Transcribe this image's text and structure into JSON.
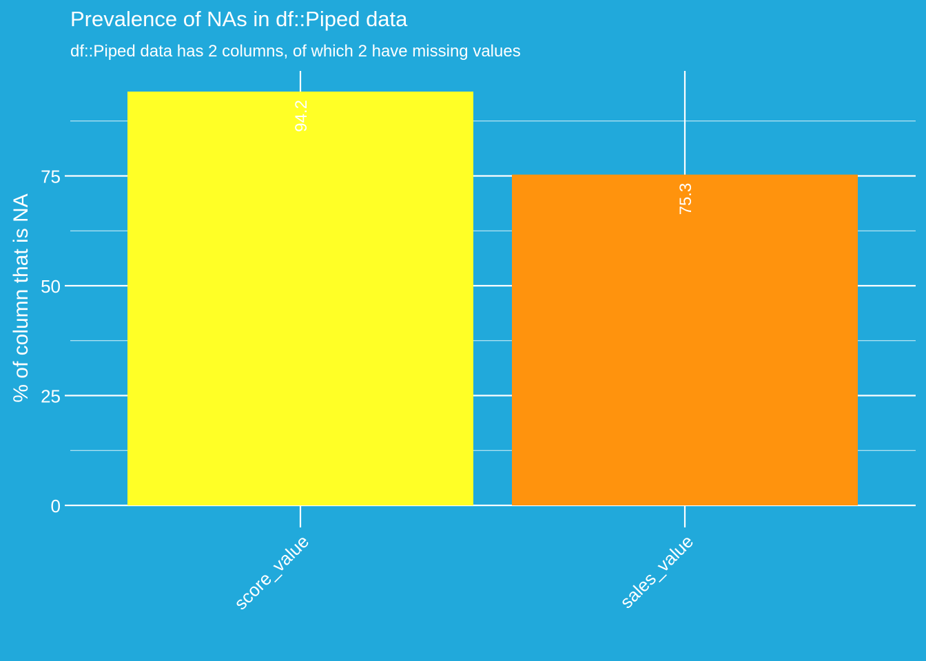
{
  "chart_data": {
    "type": "bar",
    "title": "Prevalence of NAs in df::Piped data",
    "subtitle": "df::Piped data has 2 columns, of which 2 have missing values",
    "xlabel": "",
    "ylabel": "% of column that is NA",
    "categories": [
      "score_value",
      "sales_value"
    ],
    "values": [
      94.2,
      75.3
    ],
    "value_labels": [
      "94.2",
      "75.3"
    ],
    "bar_colors": [
      "#ffff26",
      "#ff930d"
    ],
    "ylim": [
      0,
      100
    ],
    "y_ticks": [
      0,
      25,
      50,
      75
    ],
    "y_tick_labels": [
      "0",
      "25",
      "50",
      "75"
    ],
    "grid": true,
    "legend": "none"
  },
  "colors": {
    "background": "#21a9db",
    "grid": "#ffffff",
    "text": "#ffffff"
  }
}
